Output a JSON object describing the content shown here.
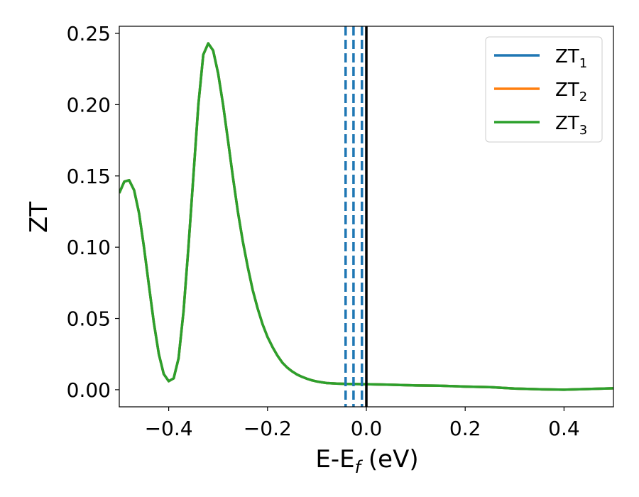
{
  "chart_data": {
    "type": "line",
    "xlabel": "E-E",
    "xlabel_sub": "f",
    "xlabel_unit": " (eV)",
    "ylabel": "ZT",
    "xlim": [
      -0.5,
      0.5
    ],
    "ylim": [
      -0.012,
      0.255
    ],
    "x_ticks": [
      -0.4,
      -0.2,
      0.0,
      0.2,
      0.4
    ],
    "x_tick_labels": [
      "−0.4",
      "−0.2",
      "0.0",
      "0.2",
      "0.4"
    ],
    "y_ticks": [
      0.0,
      0.05,
      0.1,
      0.15,
      0.2,
      0.25
    ],
    "y_tick_labels": [
      "0.00",
      "0.05",
      "0.10",
      "0.15",
      "0.20",
      "0.25"
    ],
    "grid": false,
    "legend_position": "top-right",
    "vertical_lines": [
      {
        "x": 0.0,
        "style": "solid",
        "color": "#000000"
      },
      {
        "x": -0.042,
        "style": "dashed",
        "color": "#1f77b4"
      },
      {
        "x": -0.026,
        "style": "dashed",
        "color": "#1f77b4"
      },
      {
        "x": -0.009,
        "style": "dashed",
        "color": "#1f77b4"
      }
    ],
    "x": [
      -0.5,
      -0.49,
      -0.48,
      -0.47,
      -0.46,
      -0.45,
      -0.44,
      -0.43,
      -0.42,
      -0.41,
      -0.4,
      -0.39,
      -0.38,
      -0.37,
      -0.36,
      -0.35,
      -0.34,
      -0.33,
      -0.32,
      -0.31,
      -0.3,
      -0.29,
      -0.28,
      -0.27,
      -0.26,
      -0.25,
      -0.24,
      -0.23,
      -0.22,
      -0.21,
      -0.2,
      -0.19,
      -0.18,
      -0.17,
      -0.16,
      -0.15,
      -0.14,
      -0.13,
      -0.12,
      -0.11,
      -0.1,
      -0.09,
      -0.08,
      -0.07,
      -0.06,
      -0.05,
      -0.04,
      -0.03,
      -0.02,
      -0.01,
      0.0,
      0.05,
      0.1,
      0.15,
      0.2,
      0.25,
      0.3,
      0.35,
      0.4,
      0.45,
      0.5
    ],
    "series": [
      {
        "name": "ZT",
        "name_sub": "1",
        "color": "#1f77b4",
        "values": [
          0.138,
          0.146,
          0.147,
          0.14,
          0.124,
          0.1,
          0.073,
          0.047,
          0.025,
          0.011,
          0.006,
          0.008,
          0.022,
          0.055,
          0.1,
          0.15,
          0.2,
          0.235,
          0.243,
          0.238,
          0.222,
          0.2,
          0.175,
          0.149,
          0.125,
          0.104,
          0.086,
          0.07,
          0.057,
          0.046,
          0.037,
          0.03,
          0.024,
          0.019,
          0.0155,
          0.0128,
          0.0106,
          0.009,
          0.0077,
          0.0066,
          0.0058,
          0.0052,
          0.0047,
          0.0045,
          0.0043,
          0.0042,
          0.0041,
          0.004,
          0.004,
          0.0039,
          0.0039,
          0.0035,
          0.003,
          0.0028,
          0.0022,
          0.0018,
          0.0008,
          0.0003,
          0.0,
          0.0005,
          0.001
        ]
      },
      {
        "name": "ZT",
        "name_sub": "2",
        "color": "#ff7f0e",
        "values": [
          0.138,
          0.146,
          0.147,
          0.14,
          0.124,
          0.1,
          0.073,
          0.047,
          0.025,
          0.011,
          0.006,
          0.008,
          0.022,
          0.055,
          0.1,
          0.15,
          0.2,
          0.235,
          0.243,
          0.238,
          0.222,
          0.2,
          0.175,
          0.149,
          0.125,
          0.104,
          0.086,
          0.07,
          0.057,
          0.046,
          0.037,
          0.03,
          0.024,
          0.019,
          0.0155,
          0.0128,
          0.0106,
          0.009,
          0.0077,
          0.0066,
          0.0058,
          0.0052,
          0.0047,
          0.0045,
          0.0043,
          0.0042,
          0.0041,
          0.004,
          0.004,
          0.0039,
          0.0039,
          0.0035,
          0.003,
          0.0028,
          0.0022,
          0.0018,
          0.0008,
          0.0003,
          0.0,
          0.0005,
          0.001
        ]
      },
      {
        "name": "ZT",
        "name_sub": "3",
        "color": "#2ca02c",
        "values": [
          0.138,
          0.146,
          0.147,
          0.14,
          0.124,
          0.1,
          0.073,
          0.047,
          0.025,
          0.011,
          0.006,
          0.008,
          0.022,
          0.055,
          0.1,
          0.15,
          0.2,
          0.235,
          0.243,
          0.238,
          0.222,
          0.2,
          0.175,
          0.149,
          0.125,
          0.104,
          0.086,
          0.07,
          0.057,
          0.046,
          0.037,
          0.03,
          0.024,
          0.019,
          0.0155,
          0.0128,
          0.0106,
          0.009,
          0.0077,
          0.0066,
          0.0058,
          0.0052,
          0.0047,
          0.0045,
          0.0043,
          0.0042,
          0.0041,
          0.004,
          0.004,
          0.0039,
          0.0039,
          0.0035,
          0.003,
          0.0028,
          0.0022,
          0.0018,
          0.0008,
          0.0003,
          0.0,
          0.0005,
          0.001
        ]
      }
    ]
  }
}
